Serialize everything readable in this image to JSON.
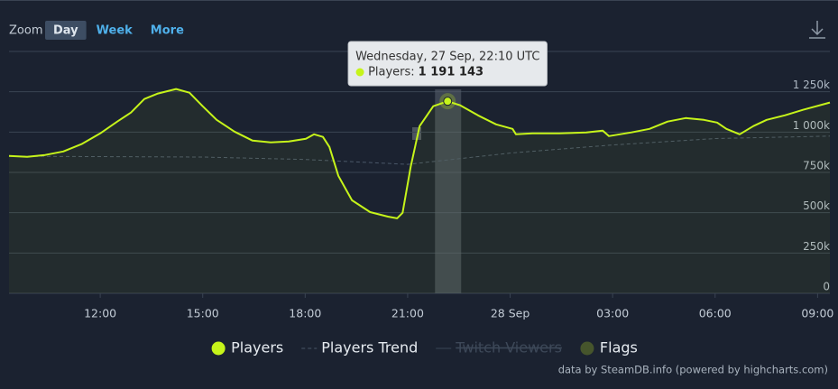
{
  "chart_data": {
    "type": "line",
    "zoom": {
      "label": "Zoom",
      "buttons": [
        "Day",
        "Week",
        "More"
      ],
      "active": "Day"
    },
    "x": [
      9.33,
      9.86,
      10.39,
      10.92,
      11.45,
      12.0,
      12.5,
      12.9,
      13.29,
      13.69,
      14.22,
      14.61,
      15.0,
      15.41,
      15.93,
      16.46,
      16.99,
      17.52,
      18.02,
      18.26,
      18.52,
      18.71,
      18.97,
      19.37,
      19.9,
      20.42,
      20.69,
      20.85,
      21.09,
      21.35,
      21.75,
      22.17,
      22.54,
      23.06,
      23.59,
      24.07,
      24.17,
      24.65,
      25.44,
      26.23,
      26.71,
      26.89,
      27.55,
      28.08,
      28.61,
      29.14,
      29.67,
      30.06,
      30.33,
      30.72,
      31.12,
      31.51,
      32.04,
      32.57,
      33.36
    ],
    "series": [
      {
        "name": "Players",
        "color": "#c6f41a",
        "values": [
          852000,
          846000,
          858000,
          880000,
          925000,
          992000,
          1065000,
          1121000,
          1205000,
          1239000,
          1267000,
          1244000,
          1160000,
          1076000,
          1003000,
          947000,
          936000,
          942000,
          958000,
          986000,
          970000,
          908000,
          729000,
          577000,
          504000,
          476000,
          465000,
          499000,
          785000,
          1037000,
          1160000,
          1191143,
          1166000,
          1104000,
          1048000,
          1020000,
          986000,
          992000,
          992000,
          998000,
          1009000,
          975000,
          998000,
          1020000,
          1065000,
          1087000,
          1076000,
          1059000,
          1020000,
          986000,
          1037000,
          1076000,
          1104000,
          1138000,
          1183000
        ]
      },
      {
        "name": "Players Trend",
        "color": "#4a5768",
        "dashed": true,
        "x": [
          9.33,
          15.0,
          18.0,
          21.0,
          24.0,
          27.0,
          30.0,
          33.36
        ],
        "values": [
          850000,
          845000,
          830000,
          800000,
          870000,
          920000,
          960000,
          975000
        ]
      }
    ],
    "extra_legend": [
      {
        "name": "Twitch Viewers",
        "color": "#3a4656",
        "hidden": true
      },
      {
        "name": "Flags",
        "color": "#46552c"
      }
    ],
    "xlim": [
      9.33,
      33.36
    ],
    "xticks": [
      {
        "value": 12,
        "label": "12:00"
      },
      {
        "value": 15,
        "label": "15:00"
      },
      {
        "value": 18,
        "label": "18:00"
      },
      {
        "value": 21,
        "label": "21:00"
      },
      {
        "value": 24,
        "label": "28 Sep"
      },
      {
        "value": 27,
        "label": "03:00"
      },
      {
        "value": 30,
        "label": "06:00"
      },
      {
        "value": 33,
        "label": "09:00"
      }
    ],
    "ylim": [
      0,
      1500000
    ],
    "yticks": [
      0,
      {
        "value": 250000,
        "label": "250k"
      },
      {
        "value": 500000,
        "label": "500k"
      },
      {
        "value": 750000,
        "label": "750k"
      },
      {
        "value": 1000000,
        "label": "1 000k"
      },
      {
        "value": 1250000,
        "label": "1 250k"
      }
    ],
    "grid": true,
    "tooltip": {
      "x": 22.17,
      "header": "Wednesday, 27 Sep, 22:10 UTC",
      "label": "Players:",
      "value_label": "1 191 143"
    },
    "credits": "data by SteamDB.info (powered by highcharts.com)"
  }
}
